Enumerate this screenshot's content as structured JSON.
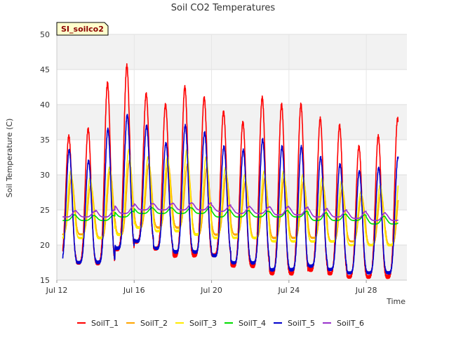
{
  "chart_data": {
    "type": "line",
    "title": "Soil CO2 Temperatures",
    "site_badge": "SI_soilco2",
    "xlabel": "Time",
    "ylabel": "Soil Temperature (C)",
    "ylim": [
      15,
      50
    ],
    "yticks": [
      15,
      20,
      25,
      30,
      35,
      40,
      45,
      50
    ],
    "xlim_days": [
      12,
      30.1
    ],
    "xticks": [
      {
        "day": 12,
        "label": "Jul 12"
      },
      {
        "day": 16,
        "label": "Jul 16"
      },
      {
        "day": 20,
        "label": "Jul 20"
      },
      {
        "day": 24,
        "label": "Jul 24"
      },
      {
        "day": 28,
        "label": "Jul 28"
      }
    ],
    "data_range_days": [
      12.3,
      29.65
    ],
    "grid": true,
    "legend_position": "bottom",
    "series": [
      {
        "name": "SoilT_1",
        "color": "#ff0000",
        "daily_min": [
          18.0,
          17.5,
          17.5,
          19.5,
          20.5,
          19.5,
          18.5,
          18.5,
          18.5,
          17.0,
          17.0,
          16.0,
          16.0,
          16.5,
          16.0,
          15.5,
          15.5,
          15.5
        ],
        "daily_max": [
          35.5,
          36.5,
          43.0,
          45.5,
          41.5,
          40.0,
          42.5,
          41.0,
          39.0,
          37.5,
          41.0,
          40.0,
          40.0,
          38.0,
          37.0,
          34.0,
          35.5,
          38.0
        ],
        "lag": 0.0
      },
      {
        "name": "SoilT_2",
        "color": "#ffa500",
        "daily_min": [
          21.5,
          21.5,
          21.0,
          21.5,
          22.5,
          22.5,
          22.5,
          21.5,
          21.5,
          21.5,
          21.0,
          21.0,
          21.0,
          21.0,
          20.5,
          20.5,
          20.0,
          20.0
        ],
        "daily_max": [
          29.5,
          28.5,
          30.5,
          32.0,
          31.5,
          31.5,
          31.5,
          31.0,
          30.0,
          29.0,
          29.5,
          29.5,
          29.0,
          28.5,
          28.0,
          27.0,
          27.5,
          28.5
        ],
        "lag": 0.14
      },
      {
        "name": "SoilT_3",
        "color": "#ffeb00",
        "daily_min": [
          21.0,
          21.0,
          21.0,
          21.5,
          22.5,
          22.0,
          22.0,
          21.5,
          21.0,
          21.0,
          21.0,
          20.5,
          20.5,
          20.5,
          20.5,
          20.0,
          20.0,
          20.0
        ],
        "daily_max": [
          30.5,
          29.5,
          31.0,
          33.5,
          32.5,
          32.5,
          33.5,
          32.5,
          31.0,
          30.0,
          30.5,
          30.5,
          30.0,
          29.5,
          29.0,
          27.5,
          28.5,
          29.5
        ],
        "lag": 0.1
      },
      {
        "name": "SoilT_4",
        "color": "#00dd00",
        "daily_min": [
          23.5,
          23.5,
          23.5,
          24.0,
          24.5,
          24.5,
          24.5,
          24.5,
          24.0,
          24.0,
          24.0,
          24.0,
          24.0,
          23.5,
          23.5,
          23.5,
          23.0,
          23.0
        ],
        "daily_max": [
          24.3,
          24.2,
          24.2,
          24.8,
          25.3,
          25.3,
          25.3,
          25.4,
          25.0,
          24.9,
          24.8,
          24.9,
          24.8,
          24.6,
          24.4,
          24.3,
          24.1,
          24.0
        ],
        "lag": 0.3
      },
      {
        "name": "SoilT_5",
        "color": "#0000cc",
        "daily_min": [
          17.5,
          17.5,
          17.5,
          19.5,
          20.5,
          19.5,
          19.0,
          19.0,
          18.5,
          17.5,
          17.5,
          16.5,
          16.5,
          17.0,
          16.5,
          16.0,
          16.0,
          16.0
        ],
        "daily_max": [
          33.5,
          32.0,
          36.5,
          38.5,
          37.0,
          34.5,
          37.0,
          36.0,
          34.0,
          33.5,
          35.0,
          34.0,
          34.0,
          32.5,
          31.5,
          30.5,
          31.0,
          32.5
        ],
        "lag": 0.02
      },
      {
        "name": "SoilT_6",
        "color": "#9932cc",
        "daily_min": [
          24.0,
          24.0,
          24.0,
          24.5,
          25.0,
          25.0,
          25.0,
          25.0,
          24.8,
          24.5,
          24.5,
          24.3,
          24.3,
          24.0,
          24.0,
          23.8,
          23.5,
          23.5
        ],
        "daily_max": [
          24.9,
          24.8,
          25.0,
          25.6,
          25.9,
          25.9,
          26.0,
          26.0,
          25.7,
          25.5,
          25.4,
          25.5,
          25.4,
          25.2,
          25.0,
          24.8,
          24.6,
          24.5
        ],
        "lag": 0.35
      }
    ]
  }
}
